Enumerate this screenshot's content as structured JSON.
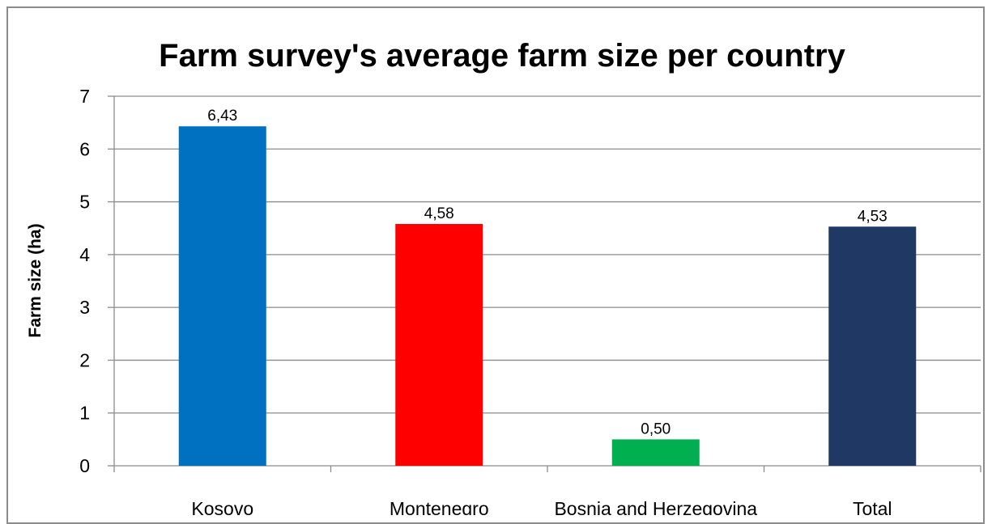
{
  "chart_data": {
    "type": "bar",
    "title": "Farm survey's average farm size per country",
    "xlabel": "",
    "ylabel": "Farm size (ha)",
    "categories": [
      "Kosovo",
      "Montenegro",
      "Bosnia and Herzegovina",
      "Total"
    ],
    "values": [
      6.43,
      4.58,
      0.5,
      4.53
    ],
    "data_labels": [
      "6,43",
      "4,58",
      "0,50",
      "4,53"
    ],
    "bar_colors": [
      "#0070c0",
      "#ff0000",
      "#00b050",
      "#1f3864"
    ],
    "ylim": [
      0,
      7
    ],
    "yticks": [
      0,
      1,
      2,
      3,
      4,
      5,
      6,
      7
    ],
    "grid": true,
    "legend": "none"
  }
}
